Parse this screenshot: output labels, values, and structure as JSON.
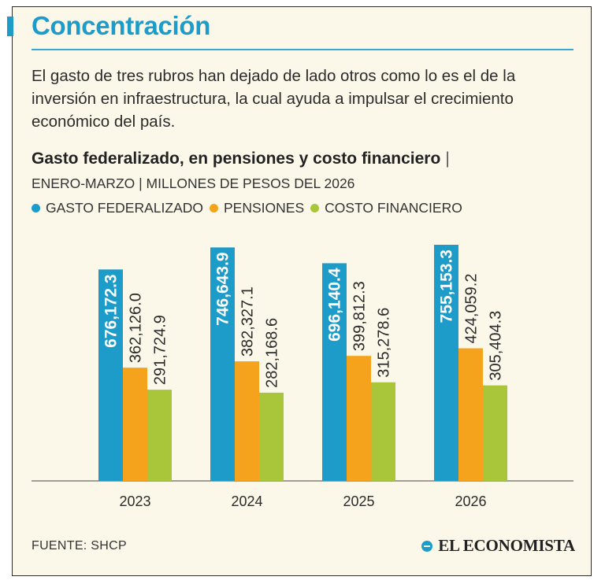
{
  "header": {
    "title": "Concentración",
    "intro": "El gasto de tres rubros han dejado de lado otros como lo es el de la inversión en infraestructura, la cual ayuda a impulsar el crecimiento económico del país."
  },
  "chart_data": {
    "type": "bar",
    "title": "Gasto federalizado, en pensiones y costo financiero",
    "title_separator": "|",
    "subtitle": "ENERO-MARZO | MILLONES DE PESOS DEL 2026",
    "categories": [
      "2023",
      "2024",
      "2025",
      "2026"
    ],
    "series": [
      {
        "name": "GASTO FEDERALIZADO",
        "color": "#1d9bc9",
        "values": [
          676172.3,
          746643.9,
          696140.4,
          755153.3
        ],
        "labels": [
          "676,172.3",
          "746,643.9",
          "696,140.4",
          "755,153.3"
        ]
      },
      {
        "name": "PENSIONES",
        "color": "#f5a21d",
        "values": [
          362126.0,
          382327.1,
          399812.3,
          424059.2
        ],
        "labels": [
          "362,126.0",
          "382,327.1",
          "399,812.3",
          "424,059.2"
        ]
      },
      {
        "name": "COSTO FINANCIERO",
        "color": "#a9c63b",
        "values": [
          291724.9,
          282168.6,
          315278.6,
          305404.3
        ],
        "labels": [
          "291,724.9",
          "282,168.6",
          "315,278.6",
          "305,404.3"
        ]
      }
    ],
    "ylim": [
      0,
      1000000
    ],
    "grid": false,
    "legend_position": "top-left"
  },
  "footer": {
    "source": "FUENTE: SHCP",
    "brand": "EL ECONOMISTA"
  },
  "colors": {
    "accent": "#1d9bc9",
    "background": "#fbf8e9"
  }
}
